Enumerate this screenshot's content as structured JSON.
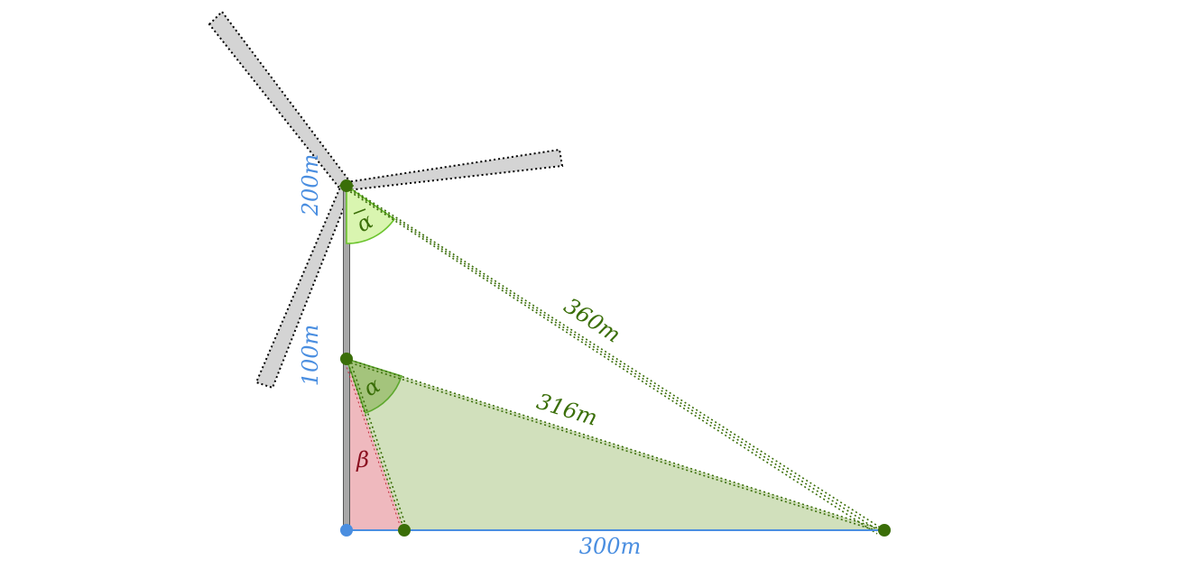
{
  "labels": {
    "height_top": "200m",
    "height_mid": "100m",
    "base": "300m",
    "hyp_long": "360m",
    "hyp_short": "316m",
    "alpha_top": "α",
    "alpha_mid": "α",
    "beta": "β"
  },
  "colors": {
    "blue": "#4a8ee0",
    "dark_green": "#3a6e08",
    "green_fill": "#b8cf98",
    "light_green_fill": "#d9f5b0",
    "red_fill": "#f0b6be",
    "blade_gray": "#d4d4d4",
    "tower_gray": "#a8a8a8"
  }
}
